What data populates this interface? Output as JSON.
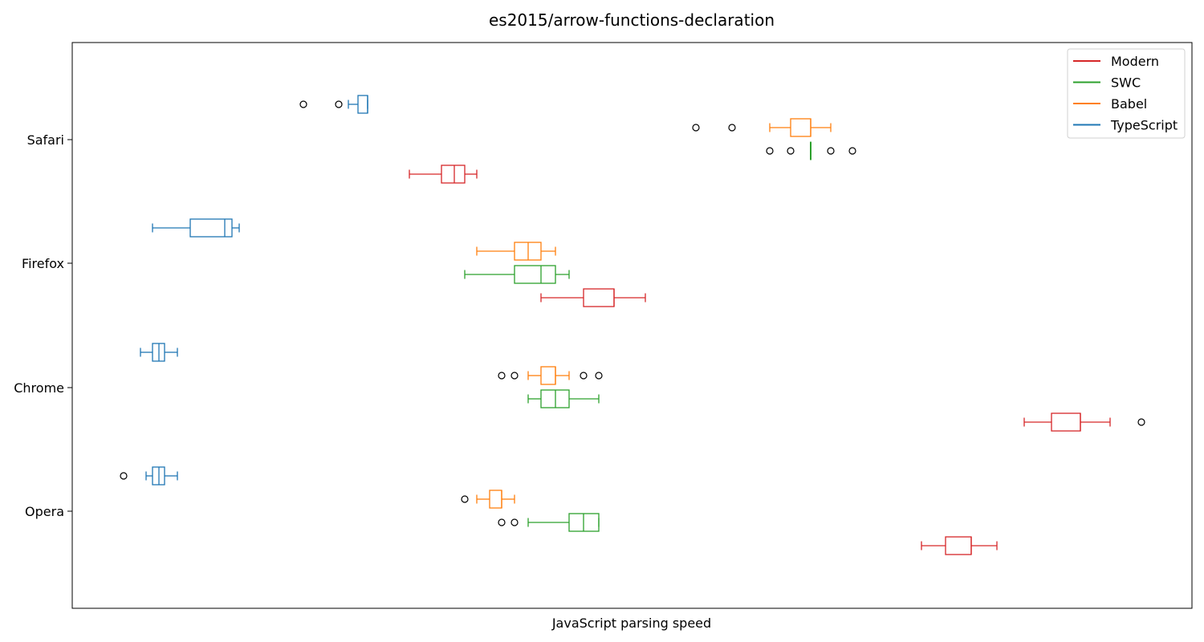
{
  "chart_data": {
    "type": "boxplot",
    "orientation": "horizontal",
    "title": "es2015/arrow-functions-declaration",
    "xlabel": "JavaScript parsing speed",
    "ylabel": "",
    "x_ticks_visible": false,
    "grid": false,
    "legend_position": "top-right",
    "categories": [
      "Opera",
      "Chrome",
      "Firefox",
      "Safari"
    ],
    "series": [
      {
        "name": "Modern",
        "color": "#d62728",
        "boxes": {
          "Opera": {
            "whislo": 1148,
            "q1": 1178,
            "med": 1210,
            "q3": 1210,
            "whishi": 1242,
            "fliers": []
          },
          "Chrome": {
            "whislo": 1276,
            "q1": 1310,
            "med": 1346,
            "q3": 1346,
            "whishi": 1383,
            "fliers": [
              1422
            ]
          },
          "Firefox": {
            "whislo": 674,
            "q1": 727,
            "med": 765,
            "q3": 765,
            "whishi": 804,
            "fliers": []
          },
          "Safari": {
            "whislo": 510,
            "q1": 550,
            "med": 566,
            "q3": 579,
            "whishi": 594,
            "fliers": []
          }
        }
      },
      {
        "name": "SWC",
        "color": "#2ca02c",
        "boxes": {
          "Opera": {
            "whislo": 658,
            "q1": 709,
            "med": 727,
            "q3": 746,
            "whishi": 746,
            "fliers": [
              625,
              641
            ]
          },
          "Chrome": {
            "whislo": 658,
            "q1": 674,
            "med": 692,
            "q3": 709,
            "whishi": 746,
            "fliers": []
          },
          "Firefox": {
            "whislo": 579,
            "q1": 641,
            "med": 674,
            "q3": 692,
            "whishi": 709,
            "fliers": []
          },
          "Safari": {
            "whislo": 1010,
            "q1": 1010,
            "med": 1010,
            "q3": 1010,
            "whishi": 1010,
            "fliers": [
              959,
              985,
              1035,
              1062
            ]
          }
        }
      },
      {
        "name": "Babel",
        "color": "#ff7f0e",
        "boxes": {
          "Opera": {
            "whislo": 594,
            "q1": 610,
            "med": 625,
            "q3": 625,
            "whishi": 641,
            "fliers": [
              579
            ]
          },
          "Chrome": {
            "whislo": 658,
            "q1": 674,
            "med": 692,
            "q3": 692,
            "whishi": 709,
            "fliers": [
              625,
              641,
              727,
              746
            ]
          },
          "Firefox": {
            "whislo": 594,
            "q1": 641,
            "med": 658,
            "q3": 674,
            "whishi": 692,
            "fliers": []
          },
          "Safari": {
            "whislo": 959,
            "q1": 985,
            "med": 1010,
            "q3": 1010,
            "whishi": 1035,
            "fliers": [
              867,
              912
            ]
          }
        }
      },
      {
        "name": "TypeScript",
        "color": "#1f77b4",
        "boxes": {
          "Opera": {
            "whislo": 182,
            "q1": 190,
            "med": 198,
            "q3": 205,
            "whishi": 221,
            "fliers": [
              154
            ]
          },
          "Chrome": {
            "whislo": 175,
            "q1": 190,
            "med": 198,
            "q3": 205,
            "whishi": 221,
            "fliers": []
          },
          "Firefox": {
            "whislo": 190,
            "q1": 237,
            "med": 280,
            "q3": 289,
            "whishi": 298,
            "fliers": []
          },
          "Safari": {
            "whislo": 434,
            "q1": 446,
            "med": 458,
            "q3": 458,
            "whishi": 458,
            "fliers": [
              378,
              422
            ]
          }
        }
      }
    ],
    "legend_order": [
      "Modern",
      "SWC",
      "Babel",
      "TypeScript"
    ]
  }
}
